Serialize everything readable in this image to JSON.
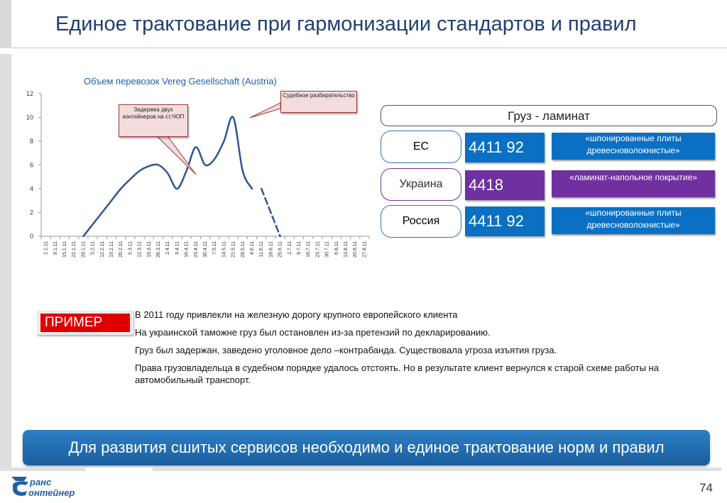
{
  "slide": {
    "title": "Единое трактование при гармонизации стандартов и правил",
    "page_number": "74",
    "banner": "Для развития сшитых сервисов необходимо и единое трактование норм и правил"
  },
  "chart_data": {
    "type": "line",
    "title": "Объем перевозок Vereg Gesellschaft (Austria)",
    "categories": [
      "1.1.11",
      "8.1.11",
      "15.1.11",
      "22.1.11",
      "29.1.11",
      "5.2.11",
      "12.2.11",
      "19.2.11",
      "26.2.11",
      "5.3.11",
      "12.3.11",
      "19.3.11",
      "26.3.11",
      "2.4.11",
      "9.4.11",
      "16.4.11",
      "23.4.11",
      "30.4.11",
      "7.5.11",
      "14.5.11",
      "21.5.11",
      "28.5.11",
      "4.6.11",
      "11.6.11",
      "18.6.11",
      "25.6.11",
      "2.7.11",
      "9.7.11",
      "16.7.11",
      "23.7.11",
      "30.7.11",
      "6.8.11",
      "13.8.11",
      "20.8.11",
      "27.8.11"
    ],
    "series": [
      {
        "style": "solid",
        "values": [
          null,
          null,
          null,
          null,
          0,
          1,
          2,
          3,
          4,
          4.8,
          5.5,
          5.9,
          6,
          5.3,
          4,
          5.5,
          7.5,
          6,
          6.5,
          8,
          10,
          5.5,
          4,
          null,
          null,
          null,
          null,
          null,
          null,
          null,
          null,
          null,
          null,
          null,
          null
        ]
      },
      {
        "style": "dashed",
        "values": [
          null,
          null,
          null,
          null,
          null,
          null,
          null,
          null,
          null,
          null,
          null,
          null,
          null,
          null,
          null,
          null,
          null,
          null,
          null,
          null,
          null,
          null,
          null,
          4,
          2,
          0,
          null,
          null,
          null,
          null,
          null,
          null,
          null,
          null,
          null
        ]
      }
    ],
    "ylim": [
      0,
      12
    ],
    "yticks": [
      0,
      2,
      4,
      6,
      8,
      10,
      12
    ],
    "annotations": [
      "Задержка двух контейнеров на ст.ЧОП",
      "Судебное разбирательство"
    ],
    "colors": {
      "line": "#2f5597"
    }
  },
  "cargo": {
    "header": "Груз - ламинат",
    "rows": [
      {
        "region": "ЕС",
        "code": "4411 92",
        "desc": "«шпонированные плиты древесноволокнистые»"
      },
      {
        "region": "Украина",
        "code": "4418",
        "desc": "«ламинат-напольное покрытие»"
      },
      {
        "region": "Россия",
        "code": "4411 92",
        "desc": "«шпонированные плиты древесноволокнистые»"
      }
    ]
  },
  "example": {
    "label": "ПРИМЕР",
    "lines": [
      "В 2011 году привлекли на железную дорогу крупного европейского клиента",
      "На украинской таможне груз был остановлен из-за претензий по декларированию.",
      "Груз был задержан, заведено уголовное дело –контрабанда. Существовала угроза изъятия груза.",
      "Права грузовладельца в судебном порядке удалось отстоять. Но в результате клиент вернулся к старой схеме работы на автомобильный транспорт."
    ]
  },
  "logo": {
    "line1": "ранс",
    "line2": "онтейнер"
  },
  "colors": {
    "title": "#1f3f6e",
    "blue": "#0a70c3",
    "purple": "#7030a0",
    "red": "#e00000"
  }
}
